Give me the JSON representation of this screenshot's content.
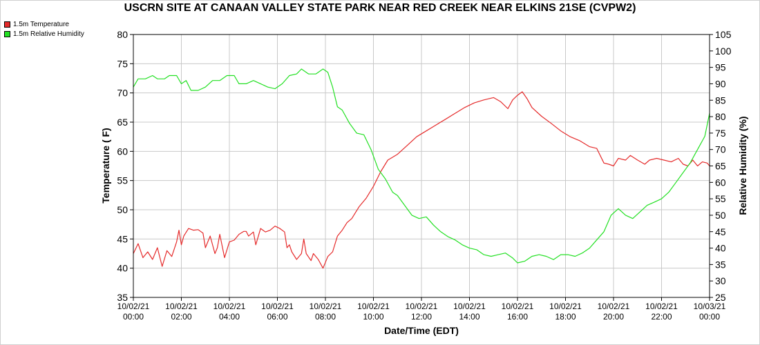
{
  "chart_data": {
    "type": "line",
    "title": "USCRN SITE AT CANAAN VALLEY STATE PARK NEAR RED CREEK NEAR ELKINS 21SE (CVPW2)",
    "xlabel": "Date/Time (EDT)",
    "ylabel_left": "Temperature ( F)",
    "ylabel_right": "Relative Humidity (%)",
    "y_left_range": [
      35,
      80
    ],
    "y_left_ticks": [
      "35",
      "40",
      "45",
      "50",
      "55",
      "60",
      "65",
      "70",
      "75",
      "80"
    ],
    "y_right_range": [
      25,
      105
    ],
    "y_right_ticks": [
      "25",
      "30",
      "35",
      "40",
      "45",
      "50",
      "55",
      "60",
      "65",
      "70",
      "75",
      "80",
      "85",
      "90",
      "95",
      "100",
      "105"
    ],
    "x_range_hours": [
      0,
      24
    ],
    "x_ticks": [
      {
        "date": "10/02/21",
        "time": "00:00"
      },
      {
        "date": "10/02/21",
        "time": "02:00"
      },
      {
        "date": "10/02/21",
        "time": "04:00"
      },
      {
        "date": "10/02/21",
        "time": "06:00"
      },
      {
        "date": "10/02/21",
        "time": "08:00"
      },
      {
        "date": "10/02/21",
        "time": "10:00"
      },
      {
        "date": "10/02/21",
        "time": "12:00"
      },
      {
        "date": "10/02/21",
        "time": "14:00"
      },
      {
        "date": "10/02/21",
        "time": "16:00"
      },
      {
        "date": "10/02/21",
        "time": "18:00"
      },
      {
        "date": "10/02/21",
        "time": "20:00"
      },
      {
        "date": "10/02/21",
        "time": "22:00"
      },
      {
        "date": "10/03/21",
        "time": "00:00"
      }
    ],
    "grid": true,
    "legend_position": "top-left",
    "series": [
      {
        "name": "1.5m Temperature",
        "color": "#e52a2a",
        "axis": "left",
        "points": [
          [
            0,
            42.5
          ],
          [
            0.2,
            44.2
          ],
          [
            0.4,
            41.8
          ],
          [
            0.6,
            42.8
          ],
          [
            0.8,
            41.5
          ],
          [
            1,
            43.5
          ],
          [
            1.2,
            40.3
          ],
          [
            1.4,
            43
          ],
          [
            1.6,
            42
          ],
          [
            1.8,
            44.5
          ],
          [
            1.9,
            46.5
          ],
          [
            2,
            44
          ],
          [
            2.1,
            45.5
          ],
          [
            2.3,
            46.8
          ],
          [
            2.5,
            46.5
          ],
          [
            2.7,
            46.6
          ],
          [
            2.9,
            46
          ],
          [
            3,
            43.5
          ],
          [
            3.2,
            45.5
          ],
          [
            3.4,
            42.5
          ],
          [
            3.5,
            43.5
          ],
          [
            3.6,
            45.8
          ],
          [
            3.8,
            41.8
          ],
          [
            4,
            44.5
          ],
          [
            4.2,
            44.8
          ],
          [
            4.4,
            45.8
          ],
          [
            4.6,
            46.3
          ],
          [
            4.7,
            46.3
          ],
          [
            4.8,
            45.5
          ],
          [
            5,
            46.2
          ],
          [
            5.1,
            44
          ],
          [
            5.3,
            46.8
          ],
          [
            5.5,
            46.2
          ],
          [
            5.7,
            46.5
          ],
          [
            5.9,
            47.2
          ],
          [
            6.1,
            46.8
          ],
          [
            6.3,
            46.2
          ],
          [
            6.4,
            43.5
          ],
          [
            6.5,
            44
          ],
          [
            6.6,
            42.8
          ],
          [
            6.8,
            41.5
          ],
          [
            7,
            42.5
          ],
          [
            7.1,
            45
          ],
          [
            7.2,
            42.5
          ],
          [
            7.4,
            41.3
          ],
          [
            7.5,
            42.5
          ],
          [
            7.7,
            41.5
          ],
          [
            7.9,
            40
          ],
          [
            8.1,
            42
          ],
          [
            8.3,
            42.8
          ],
          [
            8.5,
            45.5
          ],
          [
            8.7,
            46.5
          ],
          [
            8.9,
            47.8
          ],
          [
            9.1,
            48.5
          ],
          [
            9.4,
            50.5
          ],
          [
            9.7,
            52
          ],
          [
            10,
            54
          ],
          [
            10.3,
            56.5
          ],
          [
            10.6,
            58.5
          ],
          [
            11,
            59.5
          ],
          [
            11.4,
            61
          ],
          [
            11.8,
            62.5
          ],
          [
            12.2,
            63.5
          ],
          [
            12.6,
            64.5
          ],
          [
            13,
            65.5
          ],
          [
            13.4,
            66.5
          ],
          [
            13.8,
            67.5
          ],
          [
            14.2,
            68.3
          ],
          [
            14.6,
            68.8
          ],
          [
            15,
            69.2
          ],
          [
            15.3,
            68.5
          ],
          [
            15.6,
            67.3
          ],
          [
            15.8,
            68.8
          ],
          [
            16,
            69.6
          ],
          [
            16.2,
            70.2
          ],
          [
            16.4,
            69
          ],
          [
            16.6,
            67.5
          ],
          [
            17,
            66
          ],
          [
            17.4,
            64.8
          ],
          [
            17.8,
            63.5
          ],
          [
            18.2,
            62.5
          ],
          [
            18.6,
            61.8
          ],
          [
            19,
            60.8
          ],
          [
            19.3,
            60.5
          ],
          [
            19.6,
            58
          ],
          [
            19.8,
            57.8
          ],
          [
            20,
            57.5
          ],
          [
            20.2,
            58.8
          ],
          [
            20.5,
            58.5
          ],
          [
            20.7,
            59.3
          ],
          [
            21,
            58.5
          ],
          [
            21.3,
            57.8
          ],
          [
            21.5,
            58.5
          ],
          [
            21.8,
            58.8
          ],
          [
            22.1,
            58.5
          ],
          [
            22.4,
            58.2
          ],
          [
            22.7,
            58.8
          ],
          [
            22.9,
            57.8
          ],
          [
            23.1,
            57.5
          ],
          [
            23.3,
            58.5
          ],
          [
            23.5,
            57.5
          ],
          [
            23.7,
            58.2
          ],
          [
            23.9,
            58
          ],
          [
            24,
            57.5
          ]
        ]
      },
      {
        "name": "1.5m Relative Humidity",
        "color": "#22e022",
        "axis": "right",
        "points": [
          [
            0,
            89
          ],
          [
            0.2,
            91.5
          ],
          [
            0.5,
            91.5
          ],
          [
            0.8,
            92.5
          ],
          [
            1,
            91.5
          ],
          [
            1.3,
            91.5
          ],
          [
            1.5,
            92.5
          ],
          [
            1.8,
            92.5
          ],
          [
            2,
            90
          ],
          [
            2.2,
            91
          ],
          [
            2.4,
            88
          ],
          [
            2.7,
            88
          ],
          [
            3,
            89
          ],
          [
            3.3,
            91
          ],
          [
            3.6,
            91
          ],
          [
            3.9,
            92.5
          ],
          [
            4.2,
            92.5
          ],
          [
            4.4,
            90
          ],
          [
            4.7,
            90
          ],
          [
            5,
            91
          ],
          [
            5.3,
            90
          ],
          [
            5.6,
            89
          ],
          [
            5.9,
            88.5
          ],
          [
            6.2,
            90
          ],
          [
            6.5,
            92.5
          ],
          [
            6.8,
            93
          ],
          [
            7,
            94.5
          ],
          [
            7.3,
            93
          ],
          [
            7.6,
            93
          ],
          [
            7.9,
            94.5
          ],
          [
            8.1,
            93.5
          ],
          [
            8.3,
            89
          ],
          [
            8.5,
            83
          ],
          [
            8.7,
            82
          ],
          [
            9,
            78
          ],
          [
            9.3,
            75
          ],
          [
            9.6,
            74.5
          ],
          [
            9.9,
            70
          ],
          [
            10.2,
            64
          ],
          [
            10.5,
            61
          ],
          [
            10.8,
            57
          ],
          [
            11,
            56
          ],
          [
            11.3,
            53
          ],
          [
            11.6,
            50
          ],
          [
            11.9,
            49
          ],
          [
            12.2,
            49.5
          ],
          [
            12.5,
            47
          ],
          [
            12.8,
            45
          ],
          [
            13.1,
            43.5
          ],
          [
            13.4,
            42.5
          ],
          [
            13.7,
            41
          ],
          [
            14,
            40
          ],
          [
            14.3,
            39.5
          ],
          [
            14.6,
            38
          ],
          [
            14.9,
            37.5
          ],
          [
            15.2,
            38
          ],
          [
            15.5,
            38.5
          ],
          [
            15.8,
            37
          ],
          [
            16,
            35.5
          ],
          [
            16.3,
            36
          ],
          [
            16.6,
            37.5
          ],
          [
            16.9,
            38
          ],
          [
            17.2,
            37.5
          ],
          [
            17.5,
            36.5
          ],
          [
            17.8,
            38
          ],
          [
            18.1,
            38
          ],
          [
            18.4,
            37.5
          ],
          [
            18.7,
            38.5
          ],
          [
            19,
            40
          ],
          [
            19.3,
            42.5
          ],
          [
            19.6,
            45
          ],
          [
            19.9,
            50
          ],
          [
            20.2,
            52
          ],
          [
            20.5,
            50
          ],
          [
            20.8,
            49
          ],
          [
            21.1,
            51
          ],
          [
            21.4,
            53
          ],
          [
            21.7,
            54
          ],
          [
            22,
            55
          ],
          [
            22.3,
            57
          ],
          [
            22.6,
            60
          ],
          [
            22.9,
            63
          ],
          [
            23.2,
            66
          ],
          [
            23.5,
            70
          ],
          [
            23.8,
            74
          ],
          [
            24,
            81
          ]
        ]
      }
    ]
  }
}
